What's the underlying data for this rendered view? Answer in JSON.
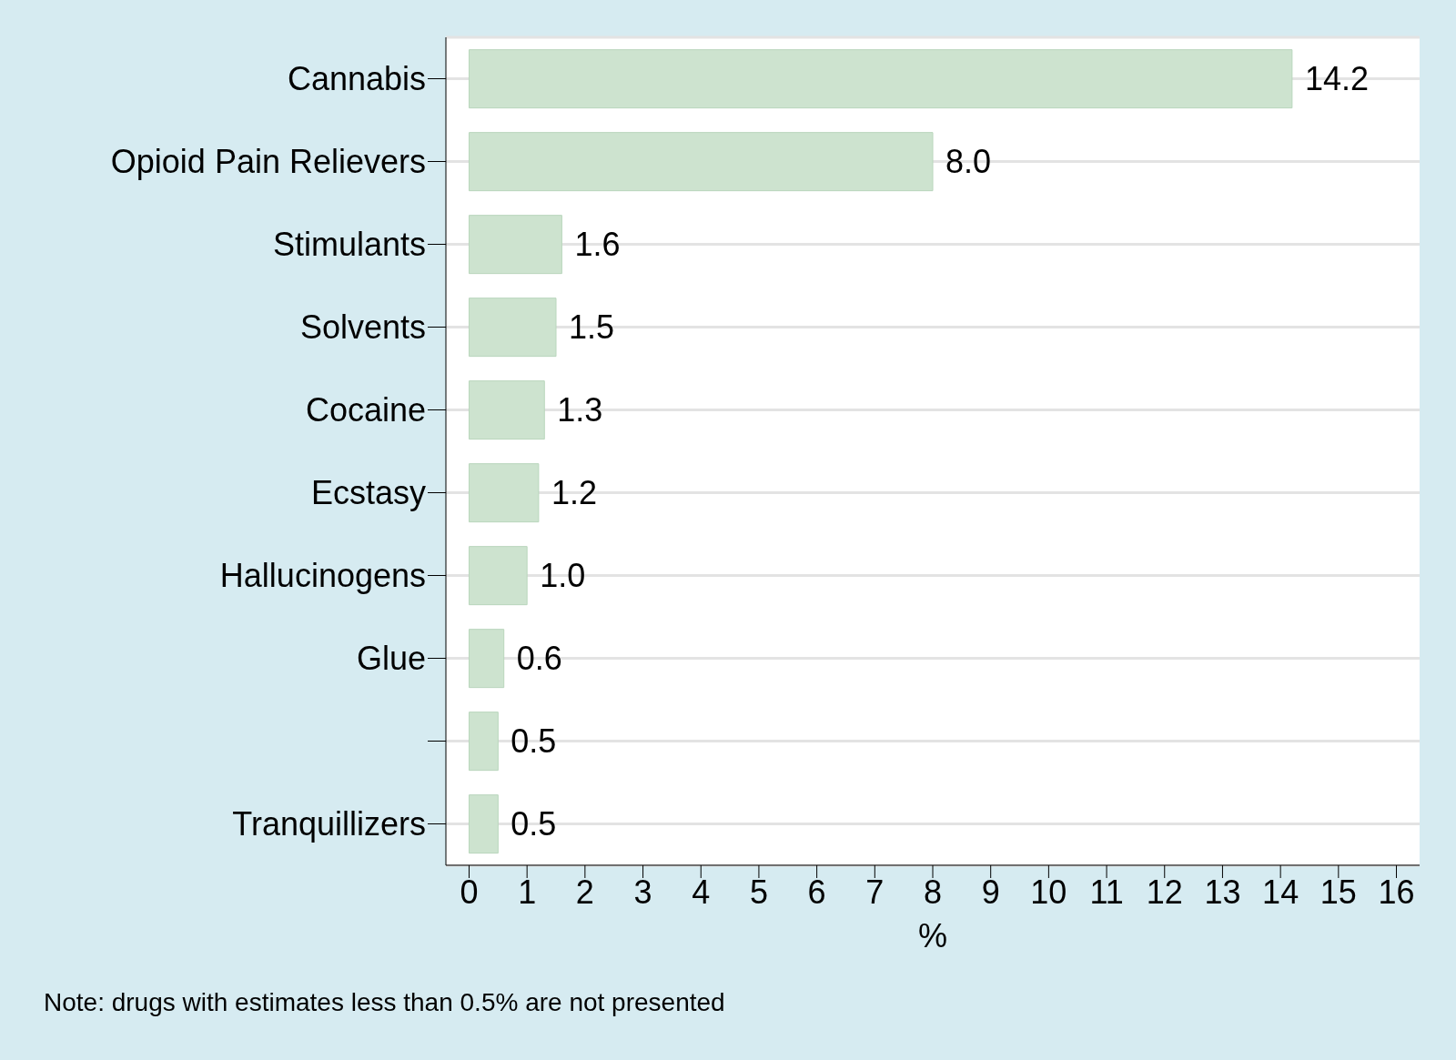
{
  "chart_data": {
    "type": "bar",
    "orientation": "horizontal",
    "categories": [
      "Cannabis",
      "Opioid Pain Relievers",
      "Stimulants",
      "Solvents",
      "Cocaine",
      "Ecstasy",
      "Hallucinogens",
      "Glue",
      null,
      "Tranquillizers"
    ],
    "values": [
      14.2,
      8.0,
      1.6,
      1.5,
      1.3,
      1.2,
      1.0,
      0.6,
      0.5,
      0.5
    ],
    "value_labels": [
      "14.2",
      "8.0",
      "1.6",
      "1.5",
      "1.3",
      "1.2",
      "1.0",
      "0.6",
      "0.5",
      "0.5"
    ],
    "color": "#cde3cf",
    "xlabel": "%",
    "xlim": [
      -0.4,
      16.4
    ],
    "xticks": [
      0,
      1,
      2,
      3,
      4,
      5,
      6,
      7,
      8,
      9,
      10,
      11,
      12,
      13,
      14,
      15,
      16
    ],
    "grid": "y",
    "annotations": [
      "Note: drugs with estimates less than 0.5% are not presented"
    ]
  }
}
